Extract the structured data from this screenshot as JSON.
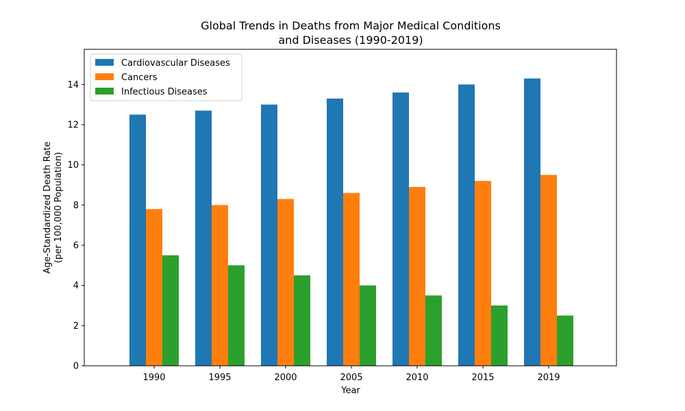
{
  "chart_data": {
    "type": "bar",
    "title_lines": [
      "Global Trends in Deaths from Major Medical Conditions",
      "and Diseases (1990-2019)"
    ],
    "xlabel": "Year",
    "ylabel_lines": [
      "Age-Standardized Death Rate",
      "(per 100,000 Population)"
    ],
    "categories": [
      "1990",
      "1995",
      "2000",
      "2005",
      "2010",
      "2015",
      "2019"
    ],
    "ylim": [
      0,
      15.75
    ],
    "yticks": [
      0,
      2,
      4,
      6,
      8,
      10,
      12,
      14
    ],
    "legend_position": "top-left",
    "series": [
      {
        "name": "Cardiovascular Diseases",
        "color": "#1f77b4",
        "values": [
          12.5,
          12.7,
          13.0,
          13.3,
          13.6,
          14.0,
          14.3
        ]
      },
      {
        "name": "Cancers",
        "color": "#ff7f0e",
        "values": [
          7.8,
          8.0,
          8.3,
          8.6,
          8.9,
          9.2,
          9.5
        ]
      },
      {
        "name": "Infectious Diseases",
        "color": "#2ca02c",
        "values": [
          5.5,
          5.0,
          4.5,
          4.0,
          3.5,
          3.0,
          2.5
        ]
      }
    ]
  }
}
